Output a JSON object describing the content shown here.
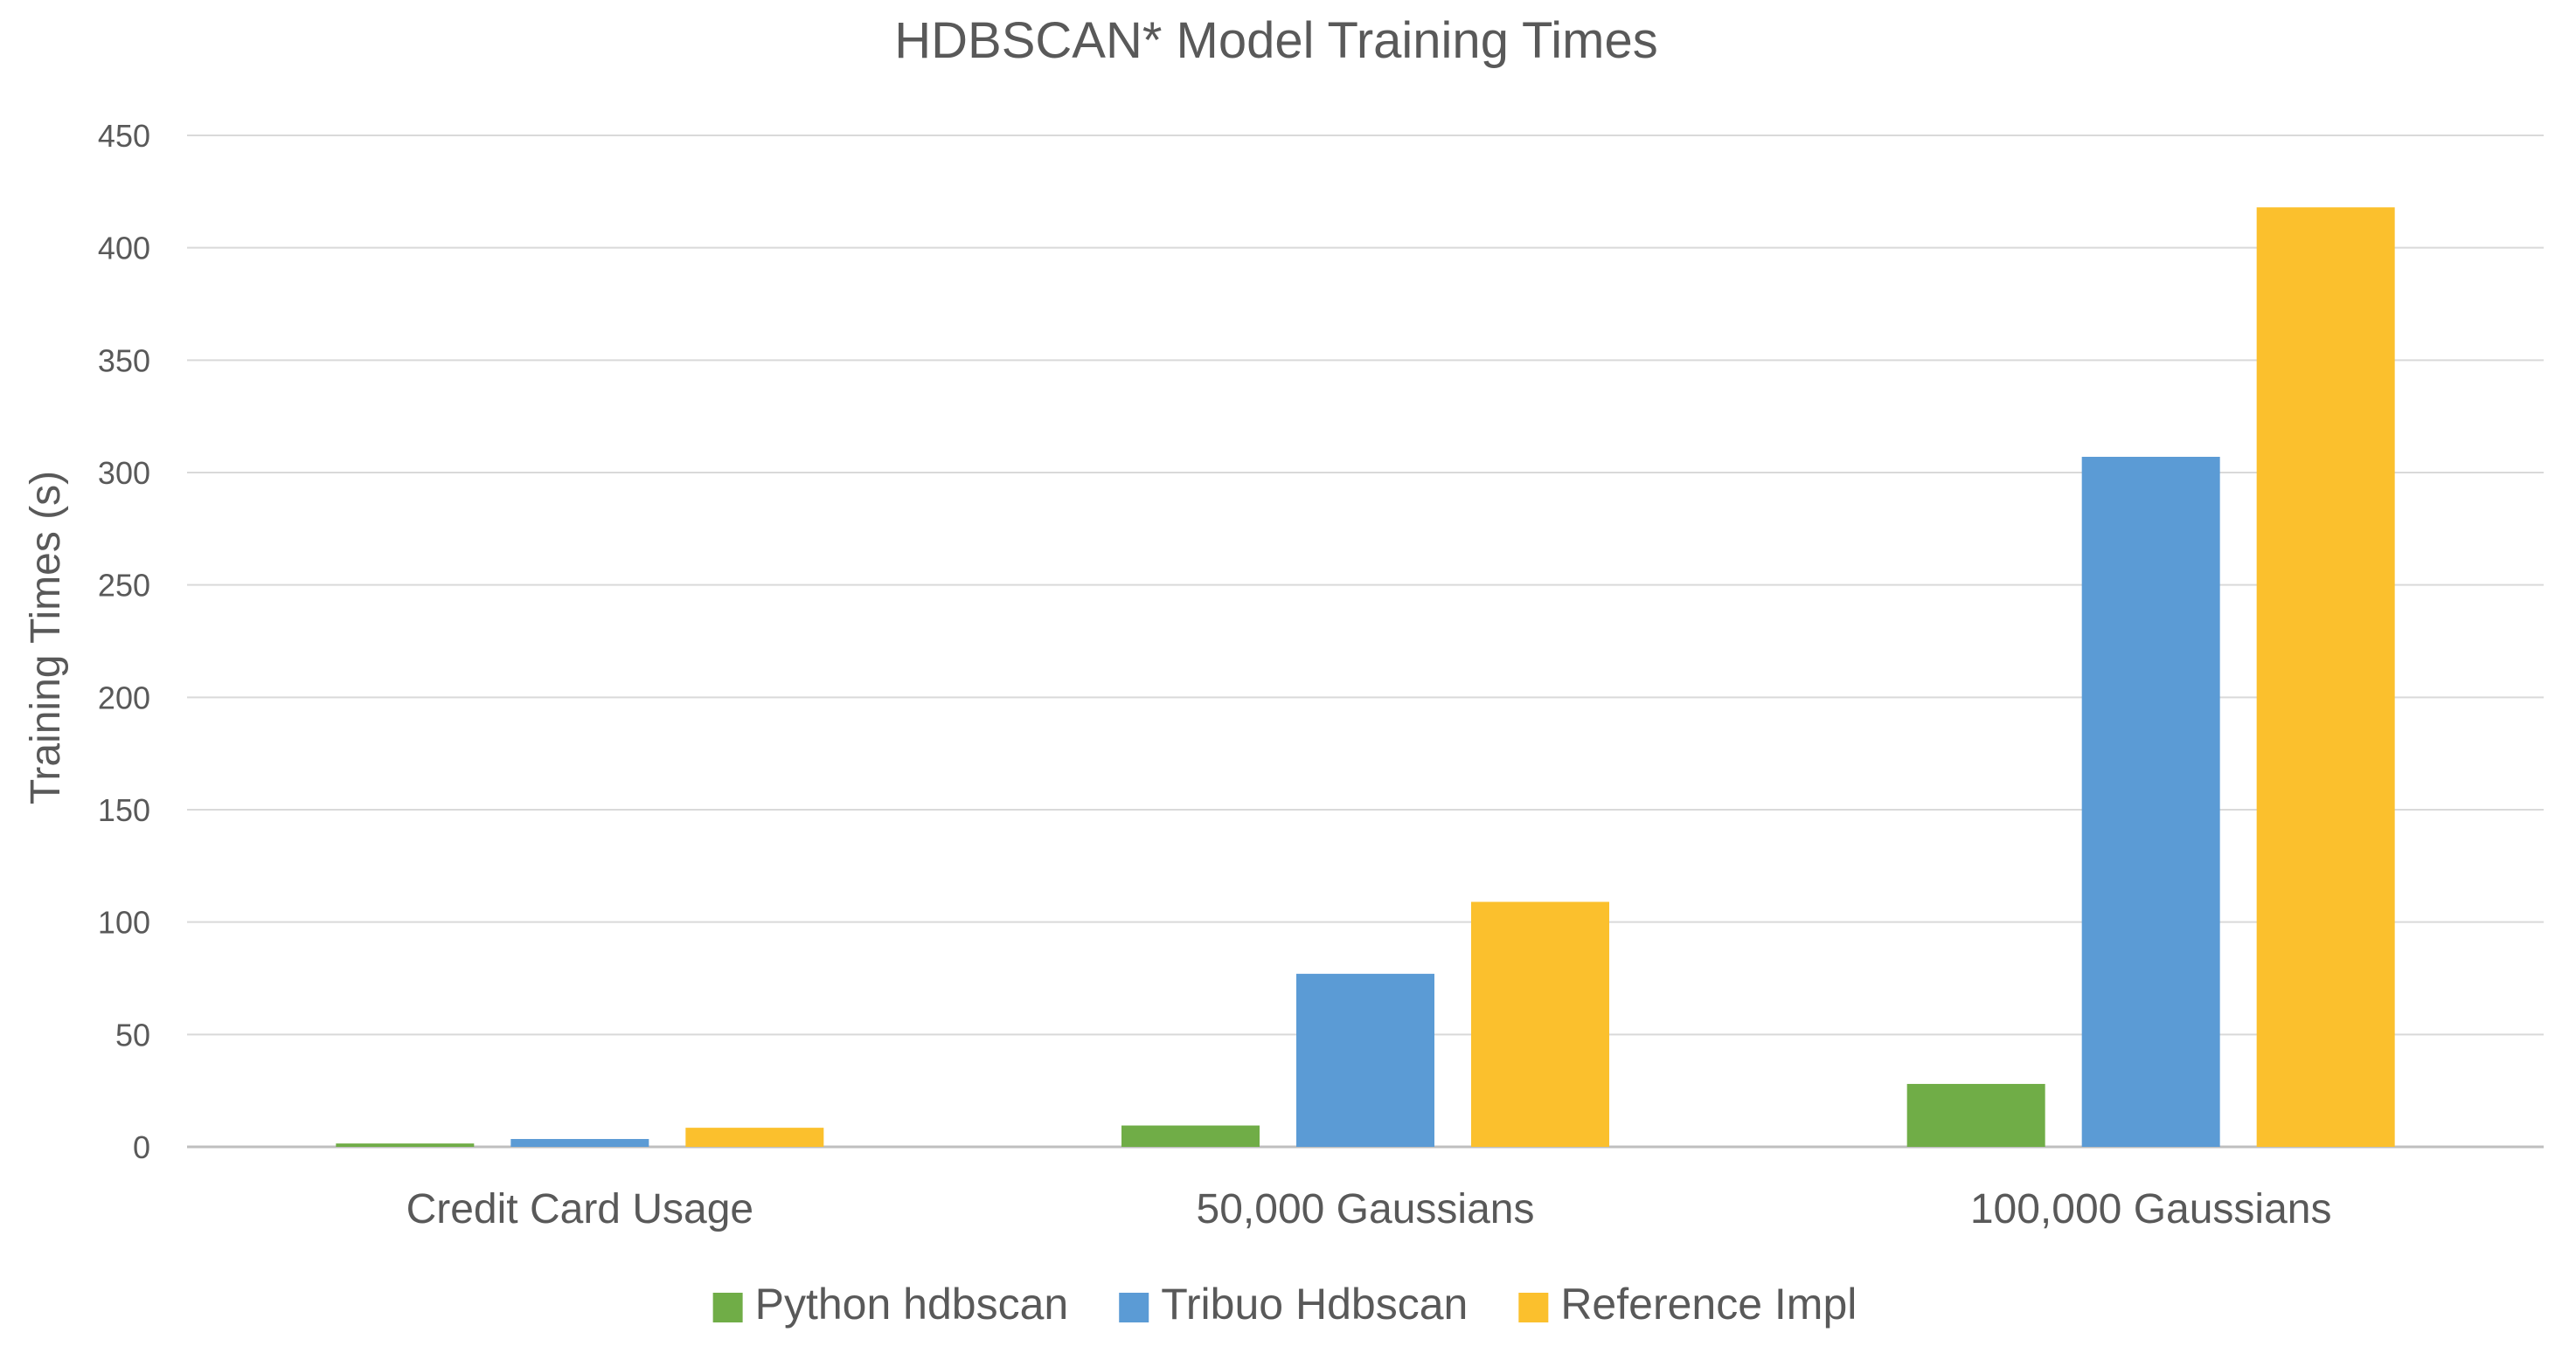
{
  "chart_data": {
    "type": "bar",
    "title": "HDBSCAN* Model Training Times",
    "xlabel": "",
    "ylabel": "Training Times (s)",
    "ylim": [
      0,
      450
    ],
    "yticks": [
      0,
      50,
      100,
      150,
      200,
      250,
      300,
      350,
      400,
      450
    ],
    "grid": true,
    "legend_position": "bottom",
    "categories": [
      "Credit Card Usage",
      "50,000 Gaussians",
      "100,000 Gaussians"
    ],
    "series": [
      {
        "name": "Python hdbscan",
        "color": "#70AD47",
        "values": [
          1.5,
          9.5,
          28
        ]
      },
      {
        "name": "Tribuo Hdbscan",
        "color": "#5B9BD5",
        "values": [
          3.5,
          77,
          307
        ]
      },
      {
        "name": "Reference Impl",
        "color": "#FBC02D",
        "values": [
          8.5,
          109,
          418
        ]
      }
    ]
  }
}
